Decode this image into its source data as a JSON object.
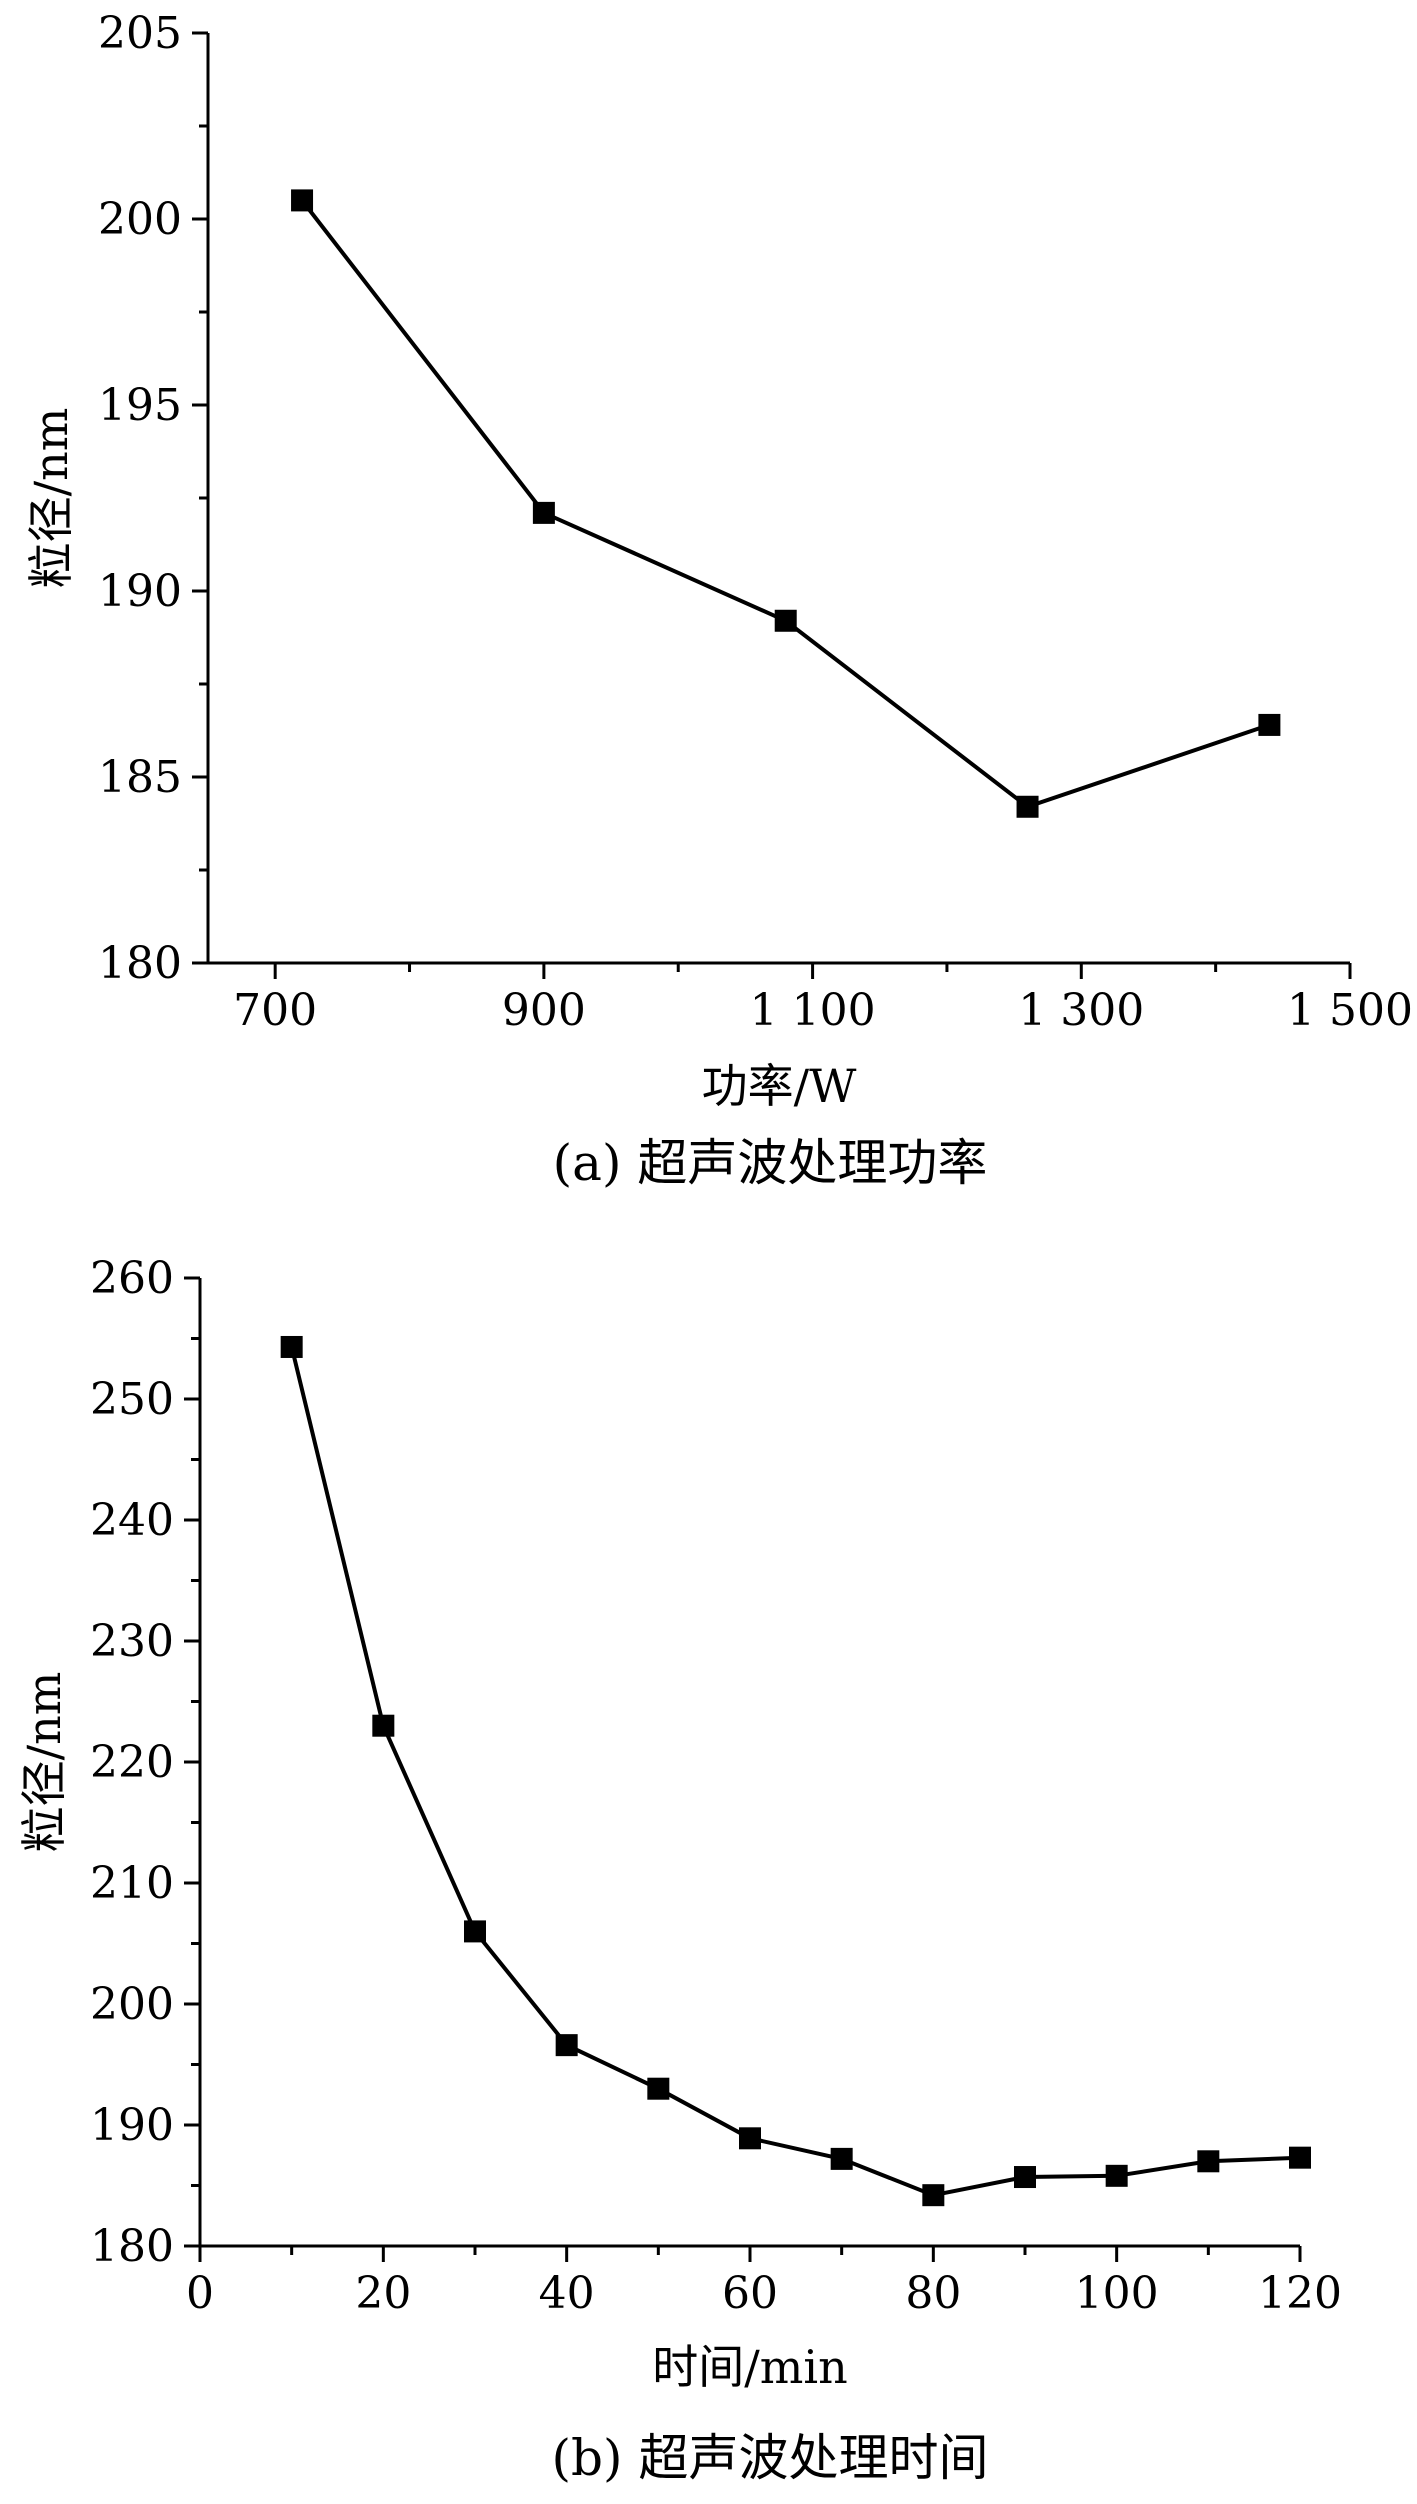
{
  "chart_data": [
    {
      "type": "line",
      "xlabel": "功率/W",
      "ylabel": "粒径/nm",
      "caption": "(a) 超声波处理功率",
      "xlim": [
        650,
        1500
      ],
      "ylim": [
        180,
        205
      ],
      "x_ticks": [
        700,
        900,
        1100,
        1300,
        1500
      ],
      "x_tick_labels": [
        "700",
        "900",
        "1 100",
        "1 300",
        "1 500"
      ],
      "x_minor_ticks": [
        800,
        1000,
        1200,
        1400
      ],
      "y_ticks": [
        180,
        185,
        190,
        195,
        200,
        205
      ],
      "y_tick_labels": [
        "180",
        "185",
        "190",
        "195",
        "200",
        "205"
      ],
      "y_minor_ticks": [
        182.5,
        187.5,
        192.5,
        197.5,
        202.5
      ],
      "grid": false,
      "series": [
        {
          "x": [
            720,
            900,
            1080,
            1260,
            1440
          ],
          "y": [
            200.5,
            192.1,
            189.2,
            184.2,
            186.4
          ]
        }
      ]
    },
    {
      "type": "line",
      "xlabel": "时间/min",
      "ylabel": "粒径/nm",
      "caption": "(b) 超声波处理时间",
      "xlim": [
        0,
        120
      ],
      "ylim": [
        180,
        260
      ],
      "x_ticks": [
        0,
        20,
        40,
        60,
        80,
        100,
        120
      ],
      "x_tick_labels": [
        "0",
        "20",
        "40",
        "60",
        "80",
        "100",
        "120"
      ],
      "x_minor_ticks": [
        10,
        30,
        50,
        70,
        90,
        110
      ],
      "y_ticks": [
        180,
        190,
        200,
        210,
        220,
        230,
        240,
        250,
        260
      ],
      "y_tick_labels": [
        "180",
        "190",
        "200",
        "210",
        "220",
        "230",
        "240",
        "250",
        "260"
      ],
      "y_minor_ticks": [
        185,
        195,
        205,
        215,
        225,
        235,
        245,
        255
      ],
      "grid": false,
      "series": [
        {
          "x": [
            10,
            20,
            30,
            40,
            50,
            60,
            70,
            80,
            90,
            100,
            110,
            120
          ],
          "y": [
            254.3,
            223.0,
            206.0,
            196.6,
            193.0,
            188.9,
            187.2,
            184.2,
            185.7,
            185.8,
            187.0,
            187.3
          ]
        }
      ]
    }
  ]
}
